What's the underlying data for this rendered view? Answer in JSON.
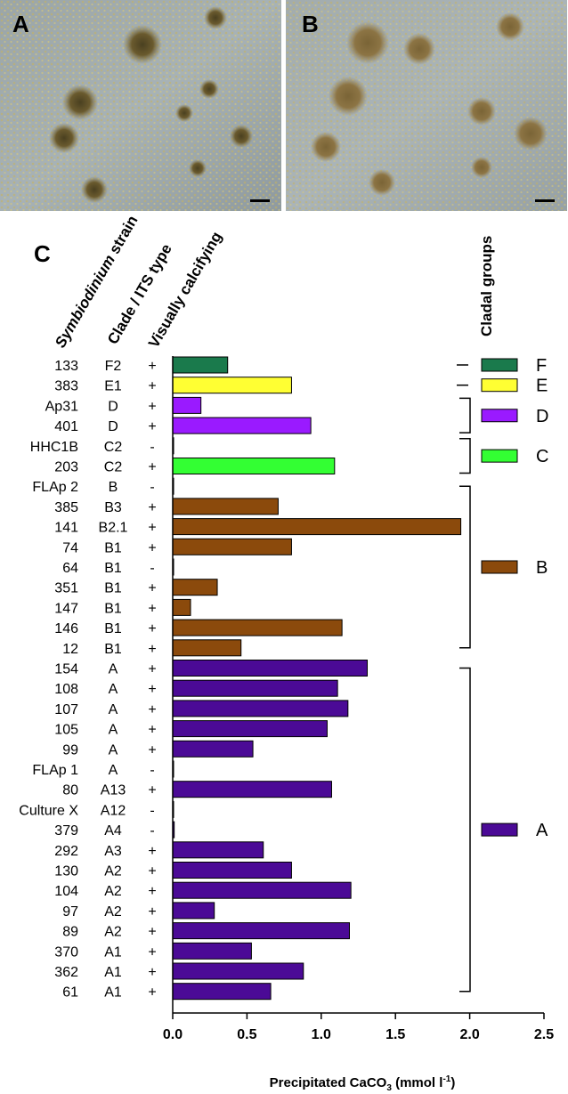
{
  "panels": {
    "a": "A",
    "b": "B",
    "c": "C"
  },
  "colors": {
    "F": "#1a7a4c",
    "E": "#ffff33",
    "D": "#9a1aff",
    "C": "#33ff33",
    "B": "#8b4a0c",
    "A": "#4b0a96"
  },
  "column_headers": {
    "strain_italic": "Symbiodinium",
    "strain_rest": " strain",
    "clade": "Clade / ITS type",
    "calcifying": "Visually calcifying",
    "groups": "Cladal groups"
  },
  "chart_data": {
    "type": "bar",
    "orientation": "horizontal",
    "xlabel_prefix": "Precipitated CaCO",
    "xlabel_sub": "3",
    "xlabel_suffix": " (mmol l",
    "xlabel_sup": "-1",
    "xlabel_end": ")",
    "xlim": [
      0,
      2.5
    ],
    "xticks": [
      "0.0",
      "0.5",
      "1.0",
      "1.5",
      "2.0",
      "2.5"
    ],
    "rows": [
      {
        "strain": "133",
        "type": "F2",
        "calc": "+",
        "value": 0.37,
        "clade": "F"
      },
      {
        "strain": "383",
        "type": "E1",
        "calc": "+",
        "value": 0.8,
        "clade": "E"
      },
      {
        "strain": "Ap31",
        "type": "D",
        "calc": "+",
        "value": 0.19,
        "clade": "D"
      },
      {
        "strain": "401",
        "type": "D",
        "calc": "+",
        "value": 0.93,
        "clade": "D"
      },
      {
        "strain": "HHC1B",
        "type": "C2",
        "calc": "-",
        "value": 0.0,
        "clade": "C"
      },
      {
        "strain": "203",
        "type": "C2",
        "calc": "+",
        "value": 1.09,
        "clade": "C"
      },
      {
        "strain": "FLAp 2",
        "type": "B",
        "calc": "-",
        "value": 0.0,
        "clade": "B"
      },
      {
        "strain": "385",
        "type": "B3",
        "calc": "+",
        "value": 0.71,
        "clade": "B"
      },
      {
        "strain": "141",
        "type": "B2.1",
        "calc": "+",
        "value": 1.94,
        "clade": "B"
      },
      {
        "strain": "74",
        "type": "B1",
        "calc": "+",
        "value": 0.8,
        "clade": "B"
      },
      {
        "strain": "64",
        "type": "B1",
        "calc": "-",
        "value": 0.0,
        "clade": "B"
      },
      {
        "strain": "351",
        "type": "B1",
        "calc": "+",
        "value": 0.3,
        "clade": "B"
      },
      {
        "strain": "147",
        "type": "B1",
        "calc": "+",
        "value": 0.12,
        "clade": "B"
      },
      {
        "strain": "146",
        "type": "B1",
        "calc": "+",
        "value": 1.14,
        "clade": "B"
      },
      {
        "strain": "12",
        "type": "B1",
        "calc": "+",
        "value": 0.46,
        "clade": "B"
      },
      {
        "strain": "154",
        "type": "A",
        "calc": "+",
        "value": 1.31,
        "clade": "A"
      },
      {
        "strain": "108",
        "type": "A",
        "calc": "+",
        "value": 1.11,
        "clade": "A"
      },
      {
        "strain": "107",
        "type": "A",
        "calc": "+",
        "value": 1.18,
        "clade": "A"
      },
      {
        "strain": "105",
        "type": "A",
        "calc": "+",
        "value": 1.04,
        "clade": "A"
      },
      {
        "strain": "99",
        "type": "A",
        "calc": "+",
        "value": 0.54,
        "clade": "A"
      },
      {
        "strain": "FLAp 1",
        "type": "A",
        "calc": "-",
        "value": 0.0,
        "clade": "A"
      },
      {
        "strain": "80",
        "type": "A13",
        "calc": "+",
        "value": 1.07,
        "clade": "A"
      },
      {
        "strain": "Culture X",
        "type": "A12",
        "calc": "-",
        "value": 0.0,
        "clade": "A"
      },
      {
        "strain": "379",
        "type": "A4",
        "calc": "-",
        "value": 0.01,
        "clade": "A"
      },
      {
        "strain": "292",
        "type": "A3",
        "calc": "+",
        "value": 0.61,
        "clade": "A"
      },
      {
        "strain": "130",
        "type": "A2",
        "calc": "+",
        "value": 0.8,
        "clade": "A"
      },
      {
        "strain": "104",
        "type": "A2",
        "calc": "+",
        "value": 1.2,
        "clade": "A"
      },
      {
        "strain": "97",
        "type": "A2",
        "calc": "+",
        "value": 0.28,
        "clade": "A"
      },
      {
        "strain": "89",
        "type": "A2",
        "calc": "+",
        "value": 1.19,
        "clade": "A"
      },
      {
        "strain": "370",
        "type": "A1",
        "calc": "+",
        "value": 0.53,
        "clade": "A"
      },
      {
        "strain": "362",
        "type": "A1",
        "calc": "+",
        "value": 0.88,
        "clade": "A"
      },
      {
        "strain": "61",
        "type": "A1",
        "calc": "+",
        "value": 0.66,
        "clade": "A"
      }
    ],
    "groups": [
      {
        "label": "F",
        "start": 0,
        "end": 0
      },
      {
        "label": "E",
        "start": 1,
        "end": 1
      },
      {
        "label": "D",
        "start": 2,
        "end": 3
      },
      {
        "label": "C",
        "start": 4,
        "end": 5
      },
      {
        "label": "B",
        "start": 6,
        "end": 14
      },
      {
        "label": "A",
        "start": 15,
        "end": 31
      }
    ]
  }
}
